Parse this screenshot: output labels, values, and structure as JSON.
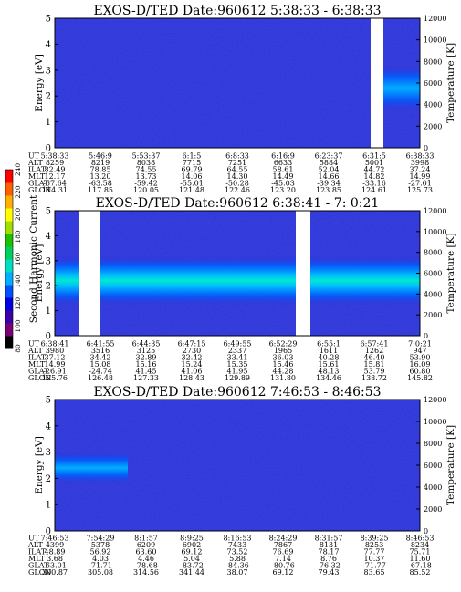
{
  "chart_data": [
    {
      "type": "heatmap",
      "title": "EXOS-D/TED   Date:960612  5:38:33 - 6:38:33",
      "ylabel": "Energy [eV]",
      "y2label": "Temperature [K]",
      "ylim": [
        0,
        5
      ],
      "y2lim": [
        0,
        12000
      ],
      "yticks": [
        "0",
        "1",
        "2",
        "3",
        "4",
        "5"
      ],
      "y2ticks": [
        "0",
        "2000",
        "4000",
        "6000",
        "8000",
        "10000",
        "12000"
      ],
      "orbit_rows": [
        "UT",
        "ALT",
        "ILAT",
        "MLT",
        "GLAT",
        "GLON"
      ],
      "orbit_values": [
        [
          "5:38:33",
          "5:46:9",
          "5:53:37",
          "6:1:5",
          "6:8:33",
          "6:16:9",
          "6:23:37",
          "6:31:5",
          "6:38:33"
        ],
        [
          "8259",
          "8219",
          "8038",
          "7715",
          "7251",
          "6633",
          "5884",
          "5001",
          "3998"
        ],
        [
          "82.49",
          "78.85",
          "74.55",
          "69.79",
          "64.55",
          "58.61",
          "52.04",
          "44.72",
          "37.24"
        ],
        [
          "12.17",
          "13.20",
          "13.73",
          "14.06",
          "14.30",
          "14.49",
          "14.66",
          "14.82",
          "14.99"
        ],
        [
          "-67.64",
          "-63.58",
          "-59.42",
          "-55.01",
          "-50.28",
          "-45.03",
          "-39.34",
          "-33.16",
          "-27.01"
        ],
        [
          "114.31",
          "117.85",
          "120.05",
          "121.48",
          "122.46",
          "123.20",
          "123.85",
          "124.61",
          "125.73"
        ]
      ],
      "data_gaps_fraction": [
        [
          0.865,
          0.9
        ]
      ],
      "features": [
        {
          "x_range": [
            0.9,
            1.27
          ],
          "energy_peak_eV": 2.3,
          "energy_spread_eV": 0.9,
          "level": "moderate"
        }
      ]
    },
    {
      "type": "heatmap",
      "title": "EXOS-D/TED   Date:960612  6:38:41 - 7: 0:21",
      "ylabel": "Energy [eV]",
      "y2label": "Temperature [K]",
      "ylim": [
        0,
        5
      ],
      "y2lim": [
        0,
        12000
      ],
      "yticks": [
        "0",
        "1",
        "2",
        "3",
        "4",
        "5"
      ],
      "y2ticks": [
        "0",
        "2000",
        "4000",
        "6000",
        "8000",
        "10000",
        "12000"
      ],
      "orbit_rows": [
        "UT",
        "ALT",
        "ILAT",
        "MLT",
        "GLAT",
        "GLON"
      ],
      "orbit_values": [
        [
          "6:38:41",
          "6:41:55",
          "6:44:35",
          "6:47:15",
          "6:49:55",
          "6:52:29",
          "6:55:1",
          "6:57:41",
          "7:0:21"
        ],
        [
          "3980",
          "3516",
          "3125",
          "2730",
          "2337",
          "1965",
          "1611",
          "1262",
          "947"
        ],
        [
          "37.12",
          "34.42",
          "32.89",
          "32.42",
          "33.41",
          "36.03",
          "40.28",
          "46.40",
          "53.90"
        ],
        [
          "14.99",
          "15.08",
          "15.16",
          "15.24",
          "15.35",
          "15.46",
          "15.61",
          "15.81",
          "16.09"
        ],
        [
          "-26.91",
          "-24.74",
          "41.45",
          "41.06",
          "41.95",
          "44.28",
          "48.13",
          "53.79",
          "60.80"
        ],
        [
          "125.76",
          "126.48",
          "127.33",
          "128.43",
          "129.89",
          "131.80",
          "134.46",
          "138.72",
          "145.82"
        ]
      ],
      "data_gaps_fraction": [
        [
          0.065,
          0.125
        ],
        [
          0.66,
          0.7
        ]
      ],
      "features": [
        {
          "x_range": [
            0.0,
            1.0
          ],
          "energy_peak_eV": 2.2,
          "energy_spread_eV": 1.0,
          "level": "strong"
        }
      ]
    },
    {
      "type": "heatmap",
      "title": "EXOS-D/TED   Date:960612  7:46:53 - 8:46:53",
      "ylabel": "Energy [eV]",
      "y2label": "Temperature [K]",
      "ylim": [
        0,
        5
      ],
      "y2lim": [
        0,
        12000
      ],
      "yticks": [
        "0",
        "1",
        "2",
        "3",
        "4",
        "5"
      ],
      "y2ticks": [
        "0",
        "2000",
        "4000",
        "6000",
        "8000",
        "10000",
        "12000"
      ],
      "orbit_rows": [
        "UT",
        "ALT",
        "ILAT",
        "MLT",
        "GLAT",
        "GLON"
      ],
      "orbit_values": [
        [
          "7:46:53",
          "7:54:29",
          "8:1:57",
          "8:9:25",
          "8:16:53",
          "8:24:29",
          "8:31:57",
          "8:39:25",
          "8:46:53"
        ],
        [
          "4399",
          "5378",
          "6209",
          "6902",
          "7433",
          "7867",
          "8131",
          "8253",
          "8234"
        ],
        [
          "48.89",
          "56.92",
          "63.60",
          "69.12",
          "73.52",
          "76.69",
          "78.17",
          "77.77",
          "75.71"
        ],
        [
          "3.68",
          "4.03",
          "4.46",
          "5.04",
          "5.88",
          "7.14",
          "8.76",
          "10.37",
          "11.60"
        ],
        [
          "-63.01",
          "-71.71",
          "-78.68",
          "-83.72",
          "-84.36",
          "-80.76",
          "-76.32",
          "-71.77",
          "-67.18"
        ],
        [
          "300.87",
          "305.08",
          "314.56",
          "341.44",
          "38.07",
          "69.12",
          "79.43",
          "83.65",
          "85.52"
        ]
      ],
      "data_gaps_fraction": [],
      "features": [
        {
          "x_range": [
            0.0,
            0.2
          ],
          "energy_peak_eV": 2.4,
          "energy_spread_eV": 0.6,
          "level": "moderate"
        }
      ]
    }
  ],
  "colorbar": {
    "label": "Second Harmonic Current",
    "ticks": [
      "80",
      "100",
      "120",
      "140",
      "160",
      "180",
      "200",
      "220",
      "240"
    ],
    "colors": [
      "#000000",
      "#7a0078",
      "#3c00a8",
      "#0000e0",
      "#0050ff",
      "#00b0ff",
      "#00e0c0",
      "#00d060",
      "#20c000",
      "#a0e000",
      "#ffff00",
      "#ffb000",
      "#ff6000",
      "#ff0000"
    ],
    "background": "#2b32d6"
  }
}
